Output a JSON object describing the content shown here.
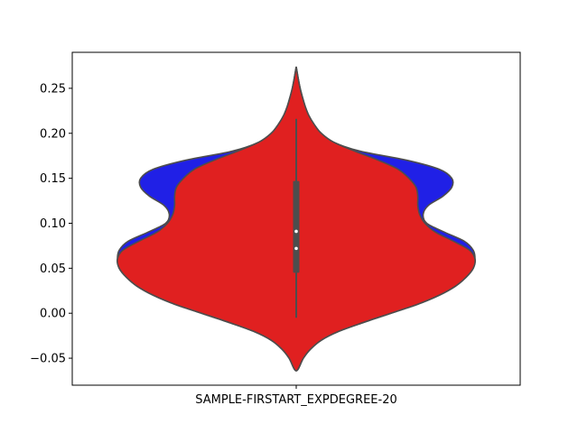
{
  "chart_data": {
    "type": "violin",
    "categories": [
      "SAMPLE-FIRSTART_EXPDEGREE-20"
    ],
    "ylim": [
      -0.08,
      0.29
    ],
    "yticks": [
      -0.05,
      0.0,
      0.05,
      0.1,
      0.15,
      0.2,
      0.25
    ],
    "ytick_labels": [
      "−0.05",
      "0.00",
      "0.05",
      "0.10",
      "0.15",
      "0.20",
      "0.25"
    ],
    "grid": false,
    "series": [
      {
        "color": "#2020e6",
        "profile": [
          [
            -0.064,
            0.0
          ],
          [
            -0.05,
            0.04
          ],
          [
            -0.04,
            0.08
          ],
          [
            -0.03,
            0.14
          ],
          [
            -0.02,
            0.24
          ],
          [
            -0.01,
            0.38
          ],
          [
            0.0,
            0.53
          ],
          [
            0.01,
            0.68
          ],
          [
            0.02,
            0.8
          ],
          [
            0.03,
            0.89
          ],
          [
            0.04,
            0.95
          ],
          [
            0.05,
            0.99
          ],
          [
            0.06,
            1.0
          ],
          [
            0.07,
            0.99
          ],
          [
            0.08,
            0.94
          ],
          [
            0.09,
            0.83
          ],
          [
            0.1,
            0.73
          ],
          [
            0.11,
            0.71
          ],
          [
            0.12,
            0.74
          ],
          [
            0.13,
            0.82
          ],
          [
            0.14,
            0.87
          ],
          [
            0.15,
            0.87
          ],
          [
            0.16,
            0.8
          ],
          [
            0.17,
            0.62
          ],
          [
            0.18,
            0.36
          ],
          [
            0.19,
            0.21
          ],
          [
            0.2,
            0.14
          ],
          [
            0.21,
            0.1
          ],
          [
            0.22,
            0.07
          ],
          [
            0.23,
            0.05
          ],
          [
            0.24,
            0.035
          ],
          [
            0.25,
            0.022
          ],
          [
            0.26,
            0.012
          ],
          [
            0.274,
            0.0
          ]
        ]
      },
      {
        "color": "#e02020",
        "profile": [
          [
            -0.064,
            0.0
          ],
          [
            -0.05,
            0.04
          ],
          [
            -0.04,
            0.08
          ],
          [
            -0.03,
            0.14
          ],
          [
            -0.02,
            0.24
          ],
          [
            -0.01,
            0.38
          ],
          [
            0.0,
            0.53
          ],
          [
            0.01,
            0.68
          ],
          [
            0.02,
            0.8
          ],
          [
            0.03,
            0.89
          ],
          [
            0.04,
            0.95
          ],
          [
            0.05,
            0.99
          ],
          [
            0.06,
            1.0
          ],
          [
            0.07,
            0.97
          ],
          [
            0.08,
            0.88
          ],
          [
            0.09,
            0.78
          ],
          [
            0.1,
            0.72
          ],
          [
            0.11,
            0.69
          ],
          [
            0.12,
            0.68
          ],
          [
            0.13,
            0.68
          ],
          [
            0.14,
            0.67
          ],
          [
            0.15,
            0.63
          ],
          [
            0.16,
            0.57
          ],
          [
            0.17,
            0.46
          ],
          [
            0.18,
            0.33
          ],
          [
            0.19,
            0.21
          ],
          [
            0.2,
            0.14
          ],
          [
            0.21,
            0.1
          ],
          [
            0.22,
            0.07
          ],
          [
            0.23,
            0.05
          ],
          [
            0.24,
            0.035
          ],
          [
            0.25,
            0.022
          ],
          [
            0.26,
            0.012
          ],
          [
            0.274,
            0.0
          ]
        ]
      }
    ],
    "box": {
      "whisker_low": -0.005,
      "q1": 0.045,
      "q3": 0.147,
      "whisker_high": 0.216,
      "points": [
        0.072,
        0.091
      ]
    }
  }
}
